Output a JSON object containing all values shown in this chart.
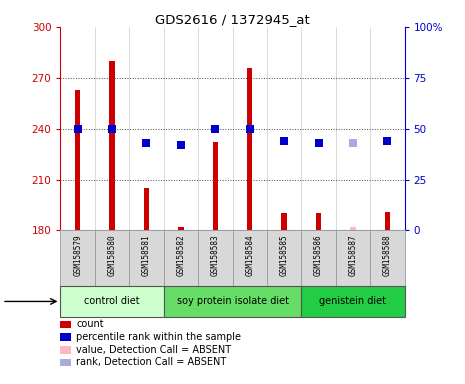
{
  "title": "GDS2616 / 1372945_at",
  "samples": [
    "GSM158579",
    "GSM158580",
    "GSM158581",
    "GSM158582",
    "GSM158583",
    "GSM158584",
    "GSM158585",
    "GSM158586",
    "GSM158587",
    "GSM158588"
  ],
  "bar_values": [
    263,
    280,
    205,
    182,
    232,
    276,
    190,
    190,
    182,
    191
  ],
  "bar_colors": [
    "#cc0000",
    "#cc0000",
    "#cc0000",
    "#cc0000",
    "#cc0000",
    "#cc0000",
    "#cc0000",
    "#cc0000",
    "#ffb6c1",
    "#cc0000"
  ],
  "rank_values": [
    50,
    50,
    43,
    42,
    50,
    50,
    44,
    43,
    43,
    44
  ],
  "rank_colors": [
    "#0000cc",
    "#0000cc",
    "#0000cc",
    "#0000cc",
    "#0000cc",
    "#0000cc",
    "#0000cc",
    "#0000cc",
    "#aaaadd",
    "#0000cc"
  ],
  "ylim_left": [
    180,
    300
  ],
  "ylim_right": [
    0,
    100
  ],
  "yticks_left": [
    180,
    210,
    240,
    270,
    300
  ],
  "yticks_right": [
    0,
    25,
    50,
    75,
    100
  ],
  "yticklabels_right": [
    "0",
    "25",
    "50",
    "75",
    "100%"
  ],
  "groups": [
    {
      "label": "control diet",
      "start": 0,
      "end": 3,
      "color": "#ccffcc"
    },
    {
      "label": "soy protein isolate diet",
      "start": 3,
      "end": 7,
      "color": "#66dd66"
    },
    {
      "label": "genistein diet",
      "start": 7,
      "end": 10,
      "color": "#22cc44"
    }
  ],
  "bar_bottom": 180,
  "left_tick_color": "#cc0000",
  "right_tick_color": "#0000cc",
  "legend_items": [
    {
      "label": "count",
      "color": "#cc0000"
    },
    {
      "label": "percentile rank within the sample",
      "color": "#0000cc"
    },
    {
      "label": "value, Detection Call = ABSENT",
      "color": "#ffb6c1"
    },
    {
      "label": "rank, Detection Call = ABSENT",
      "color": "#aaaadd"
    }
  ]
}
